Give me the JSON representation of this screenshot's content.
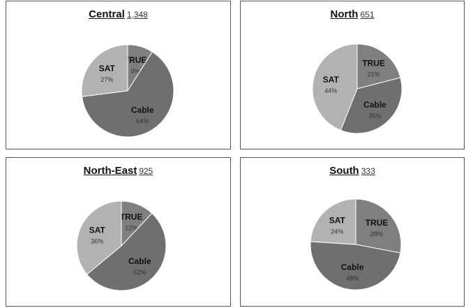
{
  "colors": {
    "TRUE": "#7f7f7f",
    "Cable": "#6f6f6f",
    "SAT": "#b2b2b2",
    "slice_border": "#ffffff",
    "leader": "#111111"
  },
  "chart_data": [
    {
      "type": "pie",
      "title": "Central",
      "total": "1,348",
      "slices": [
        {
          "label": "TRUE",
          "value": 9,
          "display": "9%"
        },
        {
          "label": "Cable",
          "value": 64,
          "display": "64%"
        },
        {
          "label": "SAT",
          "value": 27,
          "display": "27%"
        }
      ]
    },
    {
      "type": "pie",
      "title": "North",
      "total": "651",
      "slices": [
        {
          "label": "TRUE",
          "value": 21,
          "display": "21%"
        },
        {
          "label": "Cable",
          "value": 35,
          "display": "35%"
        },
        {
          "label": "SAT",
          "value": 44,
          "display": "44%"
        }
      ]
    },
    {
      "type": "pie",
      "title": "North-East",
      "total": "925",
      "slices": [
        {
          "label": "TRUE",
          "value": 12,
          "display": "12%"
        },
        {
          "label": "Cable",
          "value": 52,
          "display": "52%"
        },
        {
          "label": "SAT",
          "value": 36,
          "display": "36%"
        }
      ]
    },
    {
      "type": "pie",
      "title": "South",
      "total": "333",
      "slices": [
        {
          "label": "TRUE",
          "value": 28,
          "display": "28%"
        },
        {
          "label": "Cable",
          "value": 48,
          "display": "48%"
        },
        {
          "label": "SAT",
          "value": 24,
          "display": "24%"
        }
      ]
    }
  ]
}
